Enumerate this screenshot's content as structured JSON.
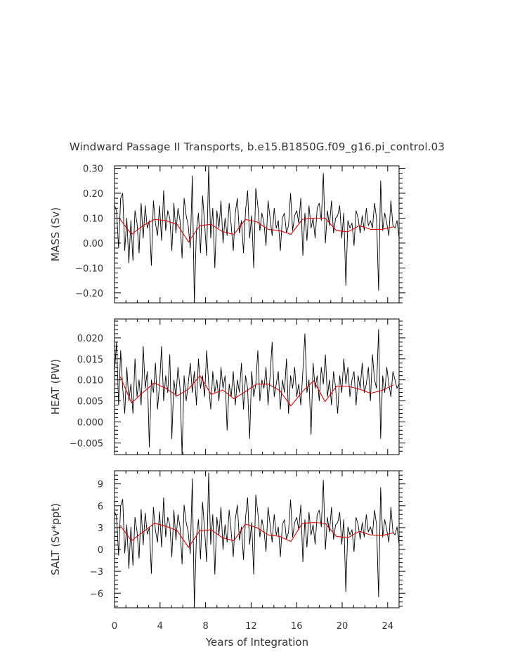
{
  "chart_data": {
    "type": "line",
    "title": "Windward Passage II Transports, b.e15.B1850G.f09_g16.pi_control.03",
    "xlabel": "Years of Integration",
    "xlim": [
      0,
      25
    ],
    "xticks": [
      0,
      4,
      8,
      12,
      16,
      20,
      24
    ],
    "xtick_labels": [
      "0",
      "4",
      "8",
      "12",
      "16",
      "20",
      "24"
    ],
    "colors": {
      "monthly": "#000000",
      "annual": "#e60000",
      "axes": "#000000",
      "text": "#333333"
    },
    "panels": [
      {
        "ylabel": "MASS (Sv)",
        "ylim": [
          -0.24,
          0.31
        ],
        "yticks": [
          -0.2,
          -0.1,
          0.0,
          0.1,
          0.2,
          0.3
        ],
        "ytick_labels": [
          "−0.20",
          "−0.10",
          "0.00",
          "0.10",
          "0.20",
          "0.30"
        ],
        "series": [
          {
            "values": [
              0.15,
              0.13,
              -0.02,
              0.18,
              0.2,
              -0.03,
              0.1,
              -0.08,
              0.09,
              -0.07,
              0.13,
              0.08,
              -0.04,
              0.16,
              0.02,
              0.15,
              0.06,
              0.09,
              -0.09,
              0.17,
              0.08,
              0.03,
              0.15,
              0.01,
              0.21,
              0.05,
              0.13,
              0.1,
              -0.03,
              0.16,
              0.04,
              0.14,
              0.09,
              -0.06,
              0.18,
              0.11,
              0.07,
              -0.02,
              0.27,
              -0.24,
              0.05,
              0.12,
              -0.04,
              0.19,
              0.08,
              -0.05,
              0.31,
              0.02,
              0.14,
              -0.1,
              0.13,
              0.06,
              0.17,
              0.0,
              0.1,
              0.03,
              0.16,
              0.07,
              -0.03,
              0.12,
              0.18,
              0.04,
              0.09,
              -0.04,
              0.13,
              0.21,
              0.02,
              0.11,
              -0.1,
              0.22,
              0.15,
              0.05,
              0.12,
              0.08,
              -0.01,
              0.17,
              0.1,
              0.03,
              0.14,
              0.06,
              0.09,
              -0.03,
              0.1,
              0.12,
              0.04,
              0.07,
              0.2,
              0.05,
              0.11,
              0.13,
              0.08,
              0.18,
              -0.05,
              0.12,
              0.01,
              0.15,
              0.06,
              0.1,
              0.02,
              0.14,
              0.16,
              0.09,
              0.28,
              0.0,
              0.13,
              0.07,
              0.17,
              0.04,
              0.1,
              0.11,
              0.15,
              0.02,
              0.12,
              -0.17,
              0.09,
              0.06,
              0.08,
              -0.01,
              0.13,
              0.1,
              0.04,
              0.11,
              0.05,
              0.14,
              0.07,
              0.09,
              0.06,
              0.16,
              0.1,
              -0.19,
              0.25,
              0.05,
              0.12,
              0.08,
              0.03,
              0.17,
              0.07,
              0.06,
              0.09,
              0.02
            ]
          },
          {
            "x": [
              0.5,
              1.5,
              2.5,
              3.5,
              4.5,
              5.5,
              6.5,
              7.5,
              8.5,
              9.5,
              10.5,
              11.5,
              12.5,
              13.5,
              14.5,
              15.5,
              16.5,
              17.5,
              18.5,
              19.5,
              20.5,
              21.5,
              22.5,
              23.5,
              24.5
            ],
            "values": [
              0.095,
              0.035,
              0.07,
              0.095,
              0.09,
              0.075,
              0.005,
              0.07,
              0.075,
              0.045,
              0.035,
              0.095,
              0.085,
              0.055,
              0.05,
              0.035,
              0.095,
              0.1,
              0.1,
              0.05,
              0.045,
              0.07,
              0.055,
              0.055,
              0.065
            ]
          }
        ]
      },
      {
        "ylabel": "HEAT (PW)",
        "ylim": [
          -0.0078,
          0.0245
        ],
        "yticks": [
          -0.005,
          0.0,
          0.005,
          0.01,
          0.015,
          0.02
        ],
        "ytick_labels": [
          "−0.005",
          "0.000",
          "0.005",
          "0.010",
          "0.015",
          "0.020"
        ],
        "series": [
          {
            "values": [
              0.012,
              0.019,
              0.004,
              0.017,
              0.008,
              0.002,
              0.013,
              0.005,
              0.009,
              0.002,
              0.015,
              0.006,
              0.01,
              0.004,
              0.018,
              0.008,
              0.012,
              -0.006,
              0.01,
              0.007,
              0.014,
              0.003,
              0.009,
              0.018,
              0.005,
              0.011,
              0.007,
              0.016,
              -0.004,
              0.01,
              0.006,
              0.013,
              0.008,
              -0.008,
              0.011,
              0.005,
              0.009,
              0.014,
              0.007,
              0.012,
              0.004,
              0.015,
              0.008,
              0.011,
              0.006,
              0.017,
              0.009,
              0.003,
              0.012,
              0.007,
              0.01,
              0.005,
              0.013,
              0.008,
              0.011,
              -0.002,
              0.009,
              0.006,
              0.012,
              0.004,
              0.01,
              0.007,
              0.014,
              0.003,
              0.011,
              0.008,
              -0.004,
              0.012,
              0.006,
              0.009,
              0.017,
              0.005,
              0.01,
              0.008,
              0.013,
              0.004,
              0.011,
              0.019,
              0.006,
              0.009,
              0.012,
              0.003,
              0.01,
              0.007,
              0.015,
              0.002,
              0.011,
              0.008,
              0.013,
              0.006,
              0.009,
              0.004,
              0.012,
              0.021,
              0.007,
              0.01,
              -0.003,
              0.014,
              0.008,
              0.011,
              0.005,
              0.013,
              0.009,
              0.016,
              0.006,
              0.01,
              0.004,
              0.012,
              0.008,
              0.002,
              0.011,
              0.007,
              0.015,
              0.009,
              0.013,
              0.006,
              0.01,
              0.012,
              0.004,
              0.011,
              0.008,
              0.014,
              0.007,
              0.009,
              0.013,
              0.005,
              0.016,
              0.01,
              0.008,
              0.022,
              -0.004,
              0.011,
              0.007,
              0.013,
              0.009,
              0.006,
              0.012,
              0.01,
              0.008,
              0.009
            ]
          },
          {
            "x": [
              0.5,
              1.5,
              2.5,
              3.5,
              4.5,
              5.5,
              6.5,
              7.5,
              8.5,
              9.5,
              10.5,
              11.5,
              12.5,
              13.5,
              14.5,
              15.5,
              16.5,
              17.5,
              18.5,
              19.5,
              20.5,
              21.5,
              22.5,
              23.5,
              24.5
            ],
            "values": [
              0.0108,
              0.0045,
              0.007,
              0.0093,
              0.008,
              0.0062,
              0.0078,
              0.011,
              0.0065,
              0.0076,
              0.0055,
              0.0072,
              0.009,
              0.009,
              0.0075,
              0.0038,
              0.0072,
              0.0098,
              0.0048,
              0.0085,
              0.0085,
              0.0078,
              0.0068,
              0.0075,
              0.0088
            ]
          }
        ]
      },
      {
        "ylabel": "SALT (Sv*ppt)",
        "ylim": [
          -8.0,
          10.8
        ],
        "yticks": [
          -6,
          -3,
          0,
          3,
          6,
          9
        ],
        "ytick_labels": [
          "−6",
          "−3",
          "0",
          "3",
          "6",
          "9"
        ],
        "series": [
          {
            "values": [
              5.2,
              4.5,
              -0.8,
              6.0,
              6.9,
              -0.5,
              3.4,
              -2.6,
              3.1,
              -2.2,
              4.4,
              2.5,
              -1.2,
              5.5,
              0.6,
              5.0,
              2.1,
              3.0,
              -3.3,
              5.8,
              2.6,
              1.0,
              5.2,
              0.3,
              7.1,
              1.7,
              4.4,
              3.4,
              -1.0,
              5.4,
              1.3,
              4.8,
              3.1,
              -2.0,
              6.1,
              3.7,
              2.4,
              -0.6,
              9.7,
              -7.9,
              1.7,
              4.1,
              -1.3,
              6.5,
              2.7,
              -1.7,
              10.5,
              0.7,
              4.8,
              -3.4,
              4.4,
              2.0,
              5.8,
              0.0,
              3.4,
              1.0,
              5.4,
              2.4,
              -1.0,
              4.1,
              6.1,
              1.3,
              3.1,
              -1.4,
              4.4,
              7.1,
              0.7,
              3.7,
              -3.4,
              7.5,
              5.1,
              1.7,
              4.1,
              2.7,
              -0.3,
              5.8,
              3.4,
              1.0,
              4.8,
              2.0,
              3.1,
              -1.0,
              3.4,
              4.1,
              1.4,
              2.4,
              6.8,
              1.7,
              3.7,
              4.4,
              2.7,
              6.1,
              -1.7,
              4.1,
              0.3,
              5.1,
              2.0,
              3.4,
              0.7,
              4.8,
              5.4,
              3.1,
              9.5,
              0.0,
              4.4,
              2.4,
              5.8,
              1.4,
              3.4,
              3.7,
              5.1,
              0.7,
              4.1,
              -5.8,
              3.1,
              2.0,
              2.7,
              -0.3,
              4.4,
              3.4,
              1.4,
              3.7,
              1.7,
              4.8,
              2.4,
              3.1,
              2.0,
              5.4,
              3.4,
              -6.5,
              8.5,
              1.7,
              4.1,
              2.7,
              1.0,
              5.8,
              2.4,
              2.0,
              3.1,
              0.7
            ]
          },
          {
            "x": [
              0.5,
              1.5,
              2.5,
              3.5,
              4.5,
              5.5,
              6.5,
              7.5,
              8.5,
              9.5,
              10.5,
              11.5,
              12.5,
              13.5,
              14.5,
              15.5,
              16.5,
              17.5,
              18.5,
              19.5,
              20.5,
              21.5,
              22.5,
              23.5,
              24.5
            ],
            "values": [
              3.3,
              1.2,
              2.4,
              3.6,
              3.2,
              2.6,
              0.3,
              2.6,
              2.7,
              1.6,
              1.2,
              3.5,
              3.0,
              2.0,
              1.8,
              1.1,
              3.6,
              3.7,
              3.6,
              1.8,
              1.6,
              2.5,
              2.0,
              1.9,
              2.3
            ]
          }
        ]
      }
    ]
  }
}
